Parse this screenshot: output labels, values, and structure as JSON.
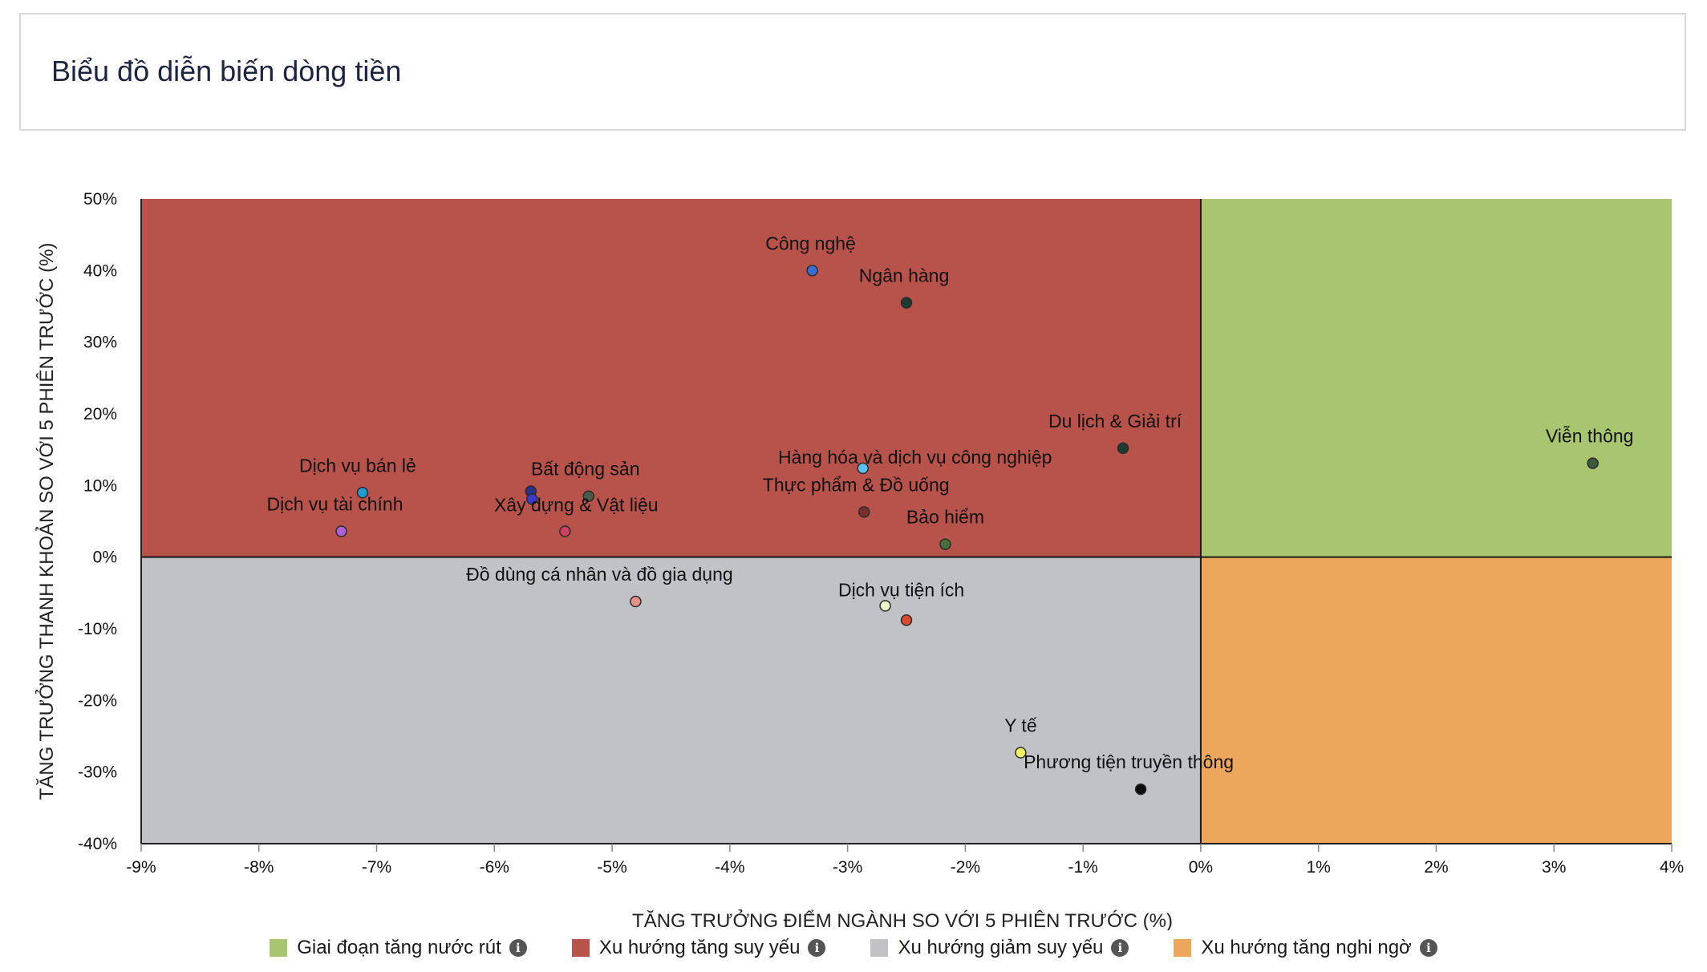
{
  "header": {
    "title": "Biểu đồ diễn biến dòng tiền"
  },
  "legend": [
    {
      "label": "Giai đoạn tăng nước rút",
      "color": "#a8c670",
      "icon": "info-icon"
    },
    {
      "label": "Xu hướng tăng suy yếu",
      "color": "#b8534c",
      "icon": "info-icon"
    },
    {
      "label": "Xu hướng giảm suy yếu",
      "color": "#c1c2c6",
      "icon": "info-icon"
    },
    {
      "label": "Xu hướng tăng nghi ngờ",
      "color": "#eda75c",
      "icon": "info-icon"
    }
  ],
  "chart_data": {
    "type": "scatter",
    "title": "",
    "xlabel": "TĂNG TRƯỞNG ĐIỂM NGÀNH SO VỚI 5 PHIÊN TRƯỚC (%)",
    "ylabel": "TĂNG TRƯỞNG THANH KHOẢN SO VỚI 5 PHIÊN TRƯỚC (%)",
    "xlim": [
      -9,
      4
    ],
    "ylim": [
      -40,
      50
    ],
    "xticks": [
      -9,
      -8,
      -7,
      -6,
      -5,
      -4,
      -3,
      -2,
      -1,
      0,
      1,
      2,
      3,
      4
    ],
    "yticks": [
      -40,
      -30,
      -20,
      -10,
      0,
      10,
      20,
      30,
      40,
      50
    ],
    "x_tick_labels": [
      "-9%",
      "-8%",
      "-7%",
      "-6%",
      "-5%",
      "-4%",
      "-3%",
      "-2%",
      "-1%",
      "0%",
      "1%",
      "2%",
      "3%",
      "4%"
    ],
    "y_tick_labels": [
      "-40%",
      "-30%",
      "-20%",
      "-10%",
      "0%",
      "10%",
      "20%",
      "30%",
      "40%",
      "50%"
    ],
    "quadrants": [
      {
        "name": "Giai đoạn tăng nước rút",
        "x_range": [
          0,
          4
        ],
        "y_range": [
          0,
          50
        ],
        "color": "#a8c670"
      },
      {
        "name": "Xu hướng tăng suy yếu",
        "x_range": [
          -9,
          0
        ],
        "y_range": [
          0,
          50
        ],
        "color": "#b8534c"
      },
      {
        "name": "Xu hướng giảm suy yếu",
        "x_range": [
          -9,
          0
        ],
        "y_range": [
          -40,
          0
        ],
        "color": "#c1c2c6"
      },
      {
        "name": "Xu hướng tăng nghi ngờ",
        "x_range": [
          0,
          4
        ],
        "y_range": [
          -40,
          0
        ],
        "color": "#eda75c"
      }
    ],
    "points": [
      {
        "label": "Công nghệ",
        "x": -3.3,
        "y": 40.0,
        "color": "#3a6fd6",
        "label_dx": -2,
        "label_dy": -26
      },
      {
        "label": "Ngân hàng",
        "x": -2.5,
        "y": 35.5,
        "color": "#1f3b2f",
        "label_dx": -3,
        "label_dy": -26
      },
      {
        "label": "Du lịch & Giải trí",
        "x": -0.66,
        "y": 15.2,
        "color": "#1f3b2f",
        "label_dx": -10,
        "label_dy": -26
      },
      {
        "label": "Viễn thông",
        "x": 3.33,
        "y": 13.1,
        "color": "#3e5a3a",
        "label_dx": -4,
        "label_dy": -26
      },
      {
        "label": "Hàng hóa và dịch vụ công nghiệp",
        "x": -2.87,
        "y": 12.4,
        "color": "#5bc0f0",
        "label_dx": 65,
        "label_dy": -6
      },
      {
        "label": "Thực phẩm & Đồ uống",
        "x": -2.86,
        "y": 6.3,
        "color": "#7a2f2f",
        "label_dx": -10,
        "label_dy": -26
      },
      {
        "label": "Bảo hiểm",
        "x": -2.17,
        "y": 1.8,
        "color": "#4a6e3e",
        "label_dx": 0,
        "label_dy": -26
      },
      {
        "label": "Dịch vụ bán lẻ",
        "x": -7.12,
        "y": 9.0,
        "color": "#1f9bd1",
        "label_dx": -6,
        "label_dy": -26
      },
      {
        "label": "Dịch vụ tài chính",
        "x": -7.3,
        "y": 3.6,
        "color": "#b060d8",
        "label_dx": -8,
        "label_dy": -26
      },
      {
        "label": "Bất động sản",
        "x": -5.2,
        "y": 8.5,
        "color": "#4a5a4a",
        "label_dx": -4,
        "label_dy": -26
      },
      {
        "label": "",
        "x": -5.69,
        "y": 9.2,
        "color": "#2a2f8a",
        "label_dx": 0,
        "label_dy": 0
      },
      {
        "label": "Xây dựng & Vật liệu",
        "x": -5.68,
        "y": 8.1,
        "color": "#3a3acf",
        "label_dx": 55,
        "label_dy": 15
      },
      {
        "label": "",
        "x": -5.4,
        "y": 3.6,
        "color": "#d04060",
        "label_dx": 0,
        "label_dy": 0
      },
      {
        "label": "Đồ dùng cá nhân và đồ gia dụng",
        "x": -4.8,
        "y": -6.2,
        "color": "#e8908a",
        "label_dx": -45,
        "label_dy": -26
      },
      {
        "label": "Dịch vụ tiện ích",
        "x": -2.68,
        "y": -6.8,
        "color": "#e8f5c8",
        "label_dx": 20,
        "label_dy": -12
      },
      {
        "label": "",
        "x": -2.5,
        "y": -8.8,
        "color": "#d94a35",
        "label_dx": 0,
        "label_dy": 0
      },
      {
        "label": "Y tế",
        "x": -1.53,
        "y": -27.3,
        "color": "#f4f060",
        "label_dx": 0,
        "label_dy": -26
      },
      {
        "label": "Phương tiện truyền thông",
        "x": -0.51,
        "y": -32.4,
        "color": "#0a0a0a",
        "label_dx": -15,
        "label_dy": -26
      }
    ]
  }
}
